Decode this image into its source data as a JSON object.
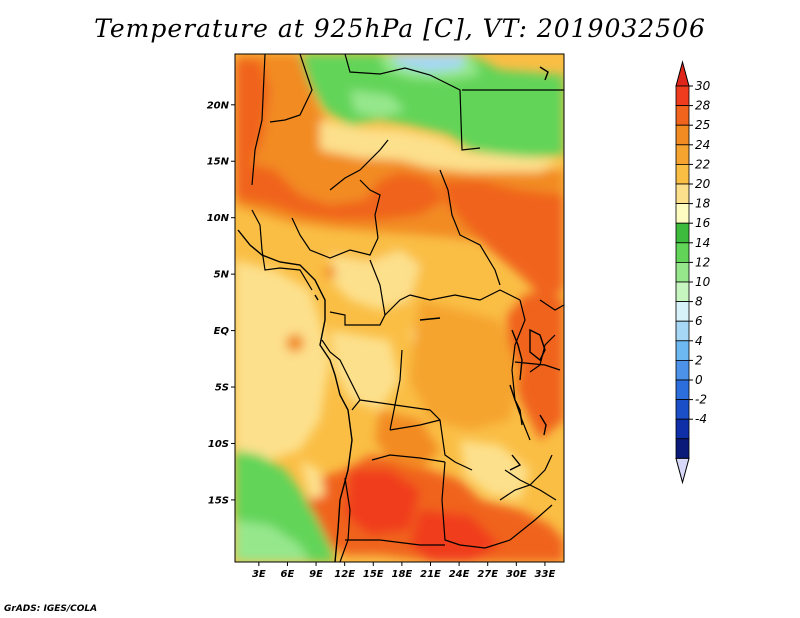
{
  "title": "Temperature at 925hPa [C], VT: 2019032506",
  "credit": "GrADS: IGES/COLA",
  "map": {
    "lat_labels": [
      "20N",
      "15N",
      "10N",
      "5N",
      "EQ",
      "5S",
      "10S",
      "15S"
    ],
    "lat_values": [
      20,
      15,
      10,
      5,
      0,
      -5,
      -10,
      -15
    ],
    "lon_labels": [
      "3E",
      "6E",
      "9E",
      "12E",
      "15E",
      "18E",
      "21E",
      "24E",
      "27E",
      "30E",
      "33E"
    ],
    "lon_values": [
      3,
      6,
      9,
      12,
      15,
      18,
      21,
      24,
      27,
      30,
      33
    ],
    "lon_range": [
      0.5,
      35
    ],
    "lat_range": [
      -20.5,
      24.5
    ]
  },
  "colorbar": {
    "labels": [
      "30",
      "28",
      "25",
      "24",
      "22",
      "20",
      "18",
      "16",
      "14",
      "12",
      "10",
      "8",
      "6",
      "4",
      "2",
      "0",
      "-2",
      "-4"
    ],
    "colors": [
      "#f03c1e",
      "#f0641e",
      "#f28b22",
      "#f5a42f",
      "#fabe45",
      "#fde08c",
      "#fffcc2",
      "#3dbb3d",
      "#62d458",
      "#96e78c",
      "#c7f5bf",
      "#d8f2fa",
      "#a6d8f5",
      "#6db8f0",
      "#4b92e8",
      "#2c6fdc",
      "#1a4fc8",
      "#0e2fa8",
      "#0a1a78"
    ],
    "top_arrow_color": "#e0261a",
    "bottom_arrow_color": "#d8d8f8"
  }
}
